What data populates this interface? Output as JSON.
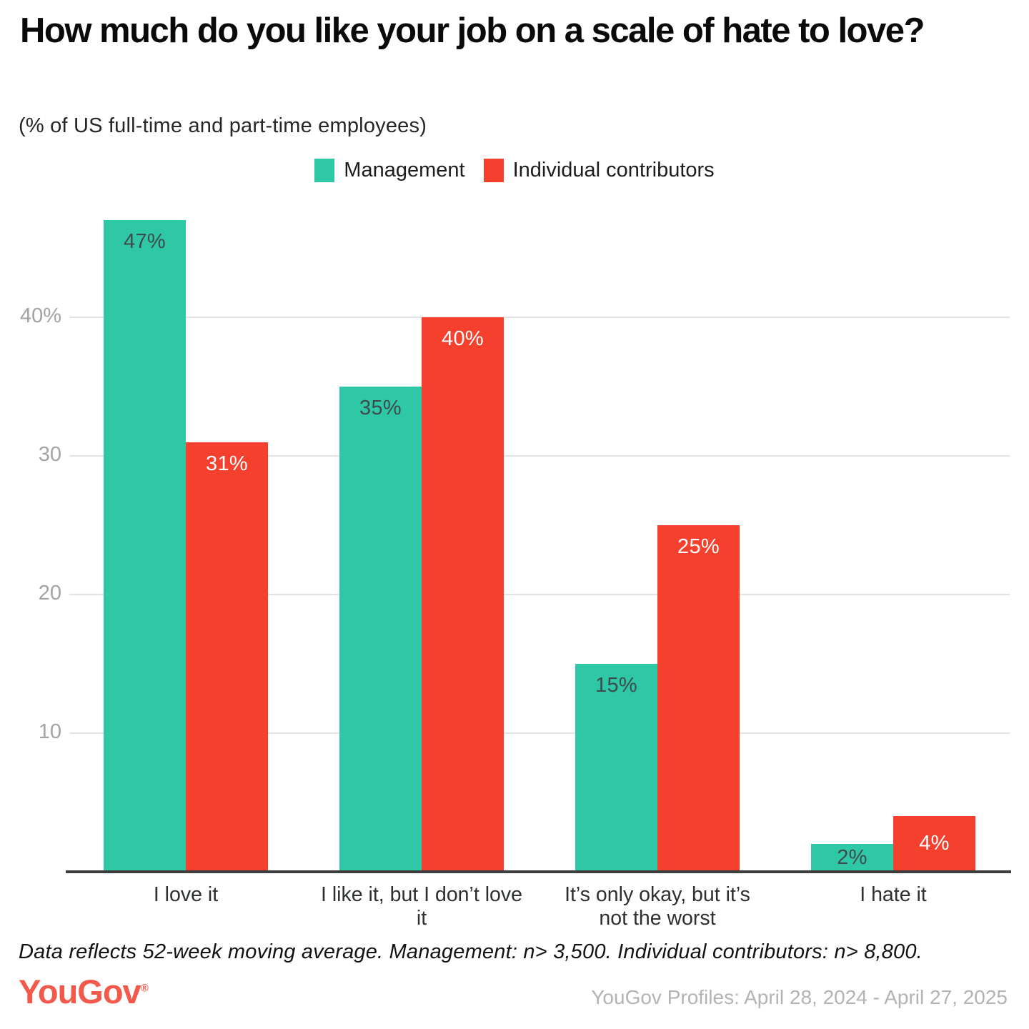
{
  "title": "How much do you like your job on a scale of hate to love?",
  "subtitle": "(% of US full-time and part-time employees)",
  "legend": {
    "items": [
      {
        "label": "Management",
        "color": "#2fc8a6"
      },
      {
        "label": "Individual contributors",
        "color": "#f4402d"
      }
    ]
  },
  "chart_data": {
    "type": "bar",
    "title": "How much do you like your job on a scale of hate to love?",
    "subtitle": "(% of US full-time and part-time employees)",
    "categories": [
      "I love it",
      "I like it, but I don’t love it",
      "It’s only okay, but it’s not the worst",
      "I hate it"
    ],
    "series": [
      {
        "name": "Management",
        "color": "#2fc8a6",
        "label_color": "#3f4b4a",
        "values": [
          47,
          35,
          15,
          2
        ]
      },
      {
        "name": "Individual contributors",
        "color": "#f4402d",
        "label_color": "#ffffff",
        "values": [
          31,
          40,
          25,
          4
        ]
      }
    ],
    "value_label_suffix": "%",
    "xlabel": "",
    "ylabel": "",
    "ylim": [
      0,
      48
    ],
    "yticks": [
      {
        "value": 10,
        "label": "10"
      },
      {
        "value": 20,
        "label": "20"
      },
      {
        "value": 30,
        "label": "30"
      },
      {
        "value": 40,
        "label": "40%"
      }
    ],
    "grid": true,
    "legend_position": "top-center",
    "colors": {
      "gridline": "#e3e3e3",
      "axis": "#3d3d3d",
      "ytick_text": "#a3a3a3",
      "category_text": "#2c3030"
    }
  },
  "footer": {
    "note": "Data reflects 52-week moving average. Management: n> 3,500. Individual contributors: n> 8,800.",
    "logo_text": "YouGov",
    "logo_reg": "®",
    "logo_color": "#f3594a",
    "source": "YouGov Profiles: April 28, 2024 - April 27, 2025"
  }
}
